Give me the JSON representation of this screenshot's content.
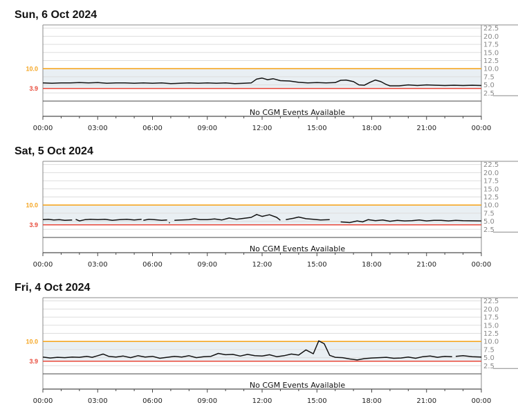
{
  "days": [
    {
      "title": "Sun, 6 Oct 2024",
      "no_events_text": "No CGM Events Available"
    },
    {
      "title": "Sat, 5 Oct 2024",
      "no_events_text": "No CGM Events Available"
    },
    {
      "title": "Fri, 4 Oct 2024",
      "no_events_text": "No CGM Events Available"
    }
  ],
  "colors": {
    "high_line": "#f5a623",
    "low_line": "#e8473a",
    "high_label": "#f5a623",
    "low_label": "#e84a3a",
    "target_band": "#e9eff3",
    "trace": "#111111",
    "grid": "#dddddd",
    "frame": "#888888"
  },
  "chart_data": [
    {
      "type": "line",
      "title": "Sun, 6 Oct 2024",
      "x_ticks": [
        "00:00",
        "03:00",
        "06:00",
        "09:00",
        "12:00",
        "15:00",
        "18:00",
        "21:00",
        "00:00"
      ],
      "y_ticks": [
        "2.5",
        "5.0",
        "7.5",
        "10.0",
        "12.5",
        "15.0",
        "17.5",
        "20.0",
        "22.5"
      ],
      "ylim": [
        0,
        23.5
      ],
      "xlim_hours": [
        0,
        24
      ],
      "thresholds": {
        "high": 10.0,
        "low": 3.9,
        "high_label": "10.0",
        "low_label": "3.9"
      },
      "series": [
        {
          "segments": [
            [
              [
                0,
                5.6
              ],
              [
                0.5,
                5.5
              ],
              [
                1,
                5.6
              ],
              [
                1.5,
                5.6
              ],
              [
                2,
                5.7
              ],
              [
                2.5,
                5.6
              ],
              [
                3,
                5.7
              ],
              [
                3.5,
                5.5
              ],
              [
                4,
                5.6
              ],
              [
                4.5,
                5.6
              ],
              [
                5,
                5.5
              ],
              [
                5.5,
                5.6
              ],
              [
                6,
                5.5
              ],
              [
                6.5,
                5.6
              ],
              [
                7,
                5.4
              ],
              [
                7.5,
                5.5
              ],
              [
                8,
                5.6
              ],
              [
                8.5,
                5.5
              ],
              [
                9,
                5.6
              ],
              [
                9.5,
                5.5
              ],
              [
                10,
                5.6
              ],
              [
                10.5,
                5.4
              ],
              [
                11,
                5.5
              ],
              [
                11.4,
                5.6
              ],
              [
                11.7,
                6.8
              ],
              [
                12,
                7.1
              ],
              [
                12.3,
                6.6
              ],
              [
                12.6,
                6.9
              ],
              [
                13,
                6.3
              ],
              [
                13.5,
                6.2
              ],
              [
                14,
                5.8
              ],
              [
                14.5,
                5.6
              ],
              [
                15,
                5.7
              ],
              [
                15.5,
                5.6
              ],
              [
                16,
                5.7
              ],
              [
                16.3,
                6.4
              ],
              [
                16.6,
                6.5
              ],
              [
                17,
                6.0
              ],
              [
                17.3,
                5.0
              ],
              [
                17.6,
                4.9
              ],
              [
                17.9,
                5.8
              ],
              [
                18.2,
                6.5
              ],
              [
                18.5,
                6.0
              ],
              [
                18.8,
                5.1
              ],
              [
                19,
                4.7
              ],
              [
                19.5,
                4.7
              ],
              [
                20,
                5.0
              ],
              [
                20.5,
                4.8
              ],
              [
                21,
                5.0
              ],
              [
                21.5,
                4.9
              ],
              [
                22,
                4.8
              ],
              [
                22.5,
                4.9
              ],
              [
                23,
                4.8
              ],
              [
                23.5,
                4.9
              ],
              [
                24,
                4.8
              ]
            ]
          ]
        }
      ]
    },
    {
      "type": "line",
      "title": "Sat, 5 Oct 2024",
      "x_ticks": [
        "00:00",
        "03:00",
        "06:00",
        "09:00",
        "12:00",
        "15:00",
        "18:00",
        "21:00",
        "00:00"
      ],
      "y_ticks": [
        "2.5",
        "5.0",
        "7.5",
        "10.0",
        "12.5",
        "15.0",
        "17.5",
        "20.0",
        "22.5"
      ],
      "ylim": [
        0,
        23.5
      ],
      "xlim_hours": [
        0,
        24
      ],
      "thresholds": {
        "high": 10.0,
        "low": 3.9,
        "high_label": "10.0",
        "low_label": "3.9"
      },
      "series": [
        {
          "segments": [
            [
              [
                0,
                5.5
              ],
              [
                0.3,
                5.6
              ],
              [
                0.6,
                5.4
              ],
              [
                0.9,
                5.5
              ],
              [
                1.2,
                5.3
              ],
              [
                1.6,
                5.4
              ]
            ],
            [
              [
                1.8,
                5.6
              ],
              [
                2.0,
                5.1
              ],
              [
                2.3,
                5.5
              ],
              [
                2.6,
                5.6
              ],
              [
                3.0,
                5.5
              ],
              [
                3.4,
                5.6
              ],
              [
                3.8,
                5.3
              ],
              [
                4.2,
                5.5
              ],
              [
                4.6,
                5.6
              ],
              [
                5.0,
                5.4
              ],
              [
                5.4,
                5.6
              ]
            ],
            [
              [
                5.5,
                5.3
              ],
              [
                5.8,
                5.6
              ],
              [
                6.1,
                5.5
              ],
              [
                6.5,
                5.3
              ],
              [
                6.8,
                5.4
              ]
            ],
            [
              [
                6.9,
                4.6
              ],
              [
                6.95,
                4.5
              ]
            ],
            [
              [
                7.2,
                5.3
              ],
              [
                7.6,
                5.4
              ],
              [
                8.0,
                5.5
              ],
              [
                8.3,
                5.8
              ],
              [
                8.6,
                5.5
              ],
              [
                9.0,
                5.5
              ],
              [
                9.4,
                5.7
              ],
              [
                9.8,
                5.4
              ],
              [
                10.2,
                6.0
              ],
              [
                10.6,
                5.6
              ],
              [
                11.0,
                5.9
              ],
              [
                11.4,
                6.2
              ],
              [
                11.7,
                7.1
              ],
              [
                12.0,
                6.5
              ],
              [
                12.4,
                7.0
              ],
              [
                12.8,
                6.2
              ],
              [
                13.0,
                5.3
              ]
            ],
            [
              [
                13.3,
                5.5
              ],
              [
                13.7,
                5.9
              ],
              [
                14.0,
                6.3
              ],
              [
                14.4,
                5.8
              ],
              [
                14.8,
                5.6
              ],
              [
                15.2,
                5.4
              ],
              [
                15.7,
                5.5
              ]
            ],
            [
              [
                16.3,
                4.8
              ],
              [
                16.8,
                4.6
              ],
              [
                17.2,
                5.1
              ],
              [
                17.5,
                4.8
              ],
              [
                17.8,
                5.5
              ],
              [
                18.2,
                5.2
              ],
              [
                18.6,
                5.4
              ],
              [
                19.0,
                5.0
              ],
              [
                19.4,
                5.3
              ],
              [
                19.8,
                5.1
              ],
              [
                20.2,
                5.2
              ],
              [
                20.6,
                5.4
              ],
              [
                21.0,
                5.1
              ],
              [
                21.4,
                5.3
              ],
              [
                21.8,
                5.3
              ],
              [
                22.2,
                5.1
              ],
              [
                22.6,
                5.3
              ],
              [
                23.0,
                5.2
              ],
              [
                24.0,
                5.1
              ]
            ]
          ]
        }
      ]
    },
    {
      "type": "line",
      "title": "Fri, 4 Oct 2024",
      "x_ticks": [
        "00:00",
        "03:00",
        "06:00",
        "09:00",
        "12:00",
        "15:00",
        "18:00",
        "21:00",
        "00:00"
      ],
      "y_ticks": [
        "2.5",
        "5.0",
        "7.5",
        "10.0",
        "12.5",
        "15.0",
        "17.5",
        "20.0",
        "22.5"
      ],
      "ylim": [
        0,
        23.5
      ],
      "xlim_hours": [
        0,
        24
      ],
      "thresholds": {
        "high": 10.0,
        "low": 3.9,
        "high_label": "10.0",
        "low_label": "3.9"
      },
      "series": [
        {
          "segments": [
            [
              [
                0,
                5.2
              ],
              [
                0.4,
                4.9
              ],
              [
                0.8,
                5.1
              ],
              [
                1.2,
                5.0
              ],
              [
                1.6,
                5.2
              ],
              [
                2.0,
                5.1
              ],
              [
                2.4,
                5.4
              ],
              [
                2.7,
                5.1
              ],
              [
                3.0,
                5.6
              ],
              [
                3.3,
                6.1
              ],
              [
                3.6,
                5.4
              ],
              [
                4.0,
                5.2
              ],
              [
                4.4,
                5.5
              ],
              [
                4.8,
                5.0
              ],
              [
                5.2,
                5.6
              ],
              [
                5.6,
                5.2
              ],
              [
                6.0,
                5.4
              ],
              [
                6.4,
                4.8
              ],
              [
                6.8,
                5.1
              ],
              [
                7.2,
                5.4
              ],
              [
                7.6,
                5.2
              ],
              [
                8.0,
                5.6
              ],
              [
                8.4,
                5.0
              ],
              [
                8.8,
                5.3
              ],
              [
                9.2,
                5.4
              ],
              [
                9.6,
                6.3
              ],
              [
                10.0,
                5.9
              ],
              [
                10.4,
                6.0
              ],
              [
                10.8,
                5.5
              ],
              [
                11.2,
                6.0
              ],
              [
                11.6,
                5.6
              ],
              [
                12.0,
                5.5
              ],
              [
                12.4,
                5.9
              ],
              [
                12.8,
                5.3
              ],
              [
                13.2,
                5.6
              ],
              [
                13.6,
                6.1
              ],
              [
                14.0,
                5.8
              ],
              [
                14.4,
                7.4
              ],
              [
                14.8,
                6.2
              ],
              [
                15.1,
                10.2
              ],
              [
                15.4,
                9.3
              ],
              [
                15.7,
                5.7
              ],
              [
                16.0,
                5.1
              ],
              [
                16.4,
                5.0
              ],
              [
                16.8,
                4.6
              ],
              [
                17.2,
                4.3
              ],
              [
                17.6,
                4.7
              ],
              [
                18.0,
                4.9
              ],
              [
                18.4,
                5.0
              ],
              [
                18.8,
                5.1
              ],
              [
                19.2,
                4.8
              ],
              [
                19.6,
                4.9
              ],
              [
                20.0,
                5.2
              ],
              [
                20.4,
                4.8
              ],
              [
                20.8,
                5.3
              ],
              [
                21.2,
                5.5
              ],
              [
                21.6,
                5.1
              ],
              [
                22.0,
                5.4
              ],
              [
                22.4,
                5.3
              ]
            ],
            [
              [
                22.6,
                5.4
              ],
              [
                23.0,
                5.6
              ],
              [
                23.5,
                5.3
              ],
              [
                24.0,
                5.2
              ]
            ]
          ]
        }
      ]
    }
  ]
}
